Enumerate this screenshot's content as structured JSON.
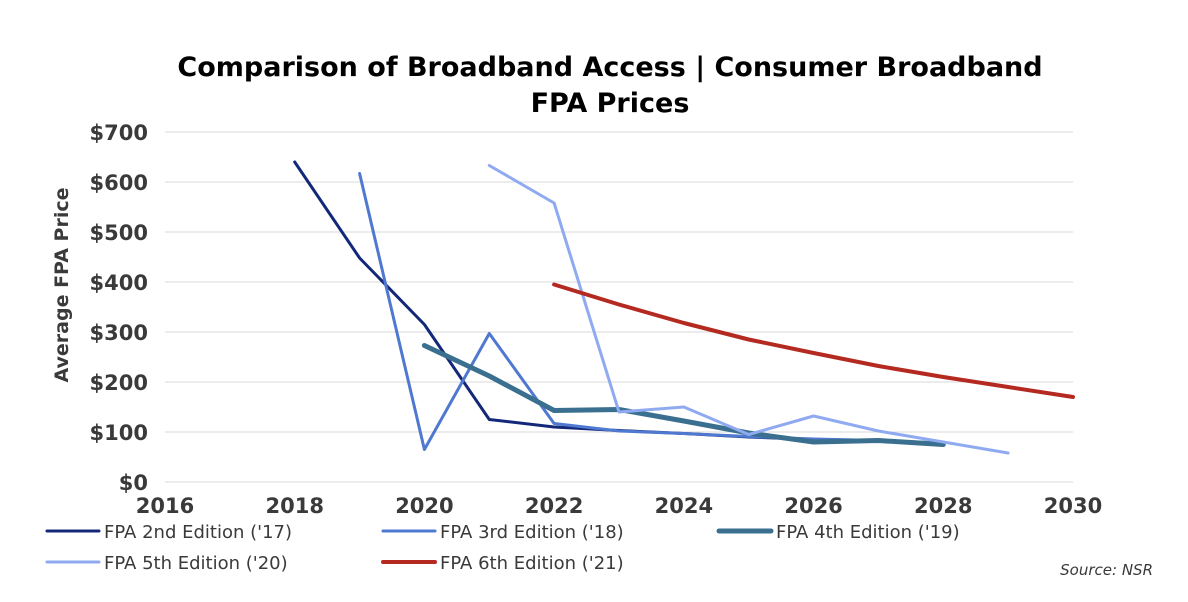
{
  "chart_data": {
    "type": "line",
    "title": "Comparison of Broadband Access | Consumer Broadband FPA Prices",
    "title_lines": [
      "Comparison of Broadband Access | Consumer Broadband",
      "FPA Prices"
    ],
    "xlabel": "",
    "ylabel": "Average FPA Price",
    "xlim": [
      2016,
      2030
    ],
    "ylim": [
      0,
      700
    ],
    "x_ticks": [
      2016,
      2018,
      2020,
      2022,
      2024,
      2026,
      2028,
      2030
    ],
    "x_tick_labels": [
      "2016",
      "2018",
      "2020",
      "2022",
      "2024",
      "2026",
      "2028",
      "2030"
    ],
    "y_ticks": [
      0,
      100,
      200,
      300,
      400,
      500,
      600,
      700
    ],
    "y_tick_labels": [
      "$0",
      "$100",
      "$200",
      "$300",
      "$400",
      "$500",
      "$600",
      "$700"
    ],
    "grid": "horizontal",
    "legend_position": "bottom",
    "source": "Source: NSR",
    "series": [
      {
        "name": "FPA 2nd Edition ('17)",
        "color": "#14287a",
        "width": 3,
        "x": [
          2018,
          2019,
          2020,
          2021,
          2022,
          2023,
          2024,
          2025,
          2026,
          2027
        ],
        "y": [
          640,
          448,
          315,
          125,
          110,
          103,
          97,
          90,
          85,
          82
        ]
      },
      {
        "name": "FPA 3rd Edition ('18)",
        "color": "#4f78d0",
        "width": 3,
        "x": [
          2019,
          2020,
          2021,
          2022,
          2023,
          2024,
          2025,
          2026,
          2027,
          2028
        ],
        "y": [
          617,
          65,
          297,
          117,
          102,
          97,
          91,
          86,
          83,
          78
        ]
      },
      {
        "name": "FPA 4th Edition ('19)",
        "color": "#3a6f8f",
        "width": 5,
        "x": [
          2020,
          2021,
          2022,
          2023,
          2024,
          2025,
          2026,
          2027,
          2028
        ],
        "y": [
          273,
          212,
          143,
          145,
          122,
          98,
          80,
          83,
          75
        ]
      },
      {
        "name": "FPA 5th Edition ('20)",
        "color": "#8faaf0",
        "width": 3,
        "x": [
          2021,
          2022,
          2023,
          2024,
          2025,
          2026,
          2027,
          2028,
          2029
        ],
        "y": [
          633,
          558,
          140,
          150,
          95,
          132,
          102,
          80,
          58
        ]
      },
      {
        "name": "FPA 6th Edition ('21)",
        "color": "#b52a20",
        "width": 4,
        "x": [
          2022,
          2023,
          2024,
          2025,
          2026,
          2027,
          2028,
          2029,
          2030
        ],
        "y": [
          395,
          355,
          318,
          285,
          258,
          232,
          210,
          190,
          170
        ]
      }
    ]
  }
}
